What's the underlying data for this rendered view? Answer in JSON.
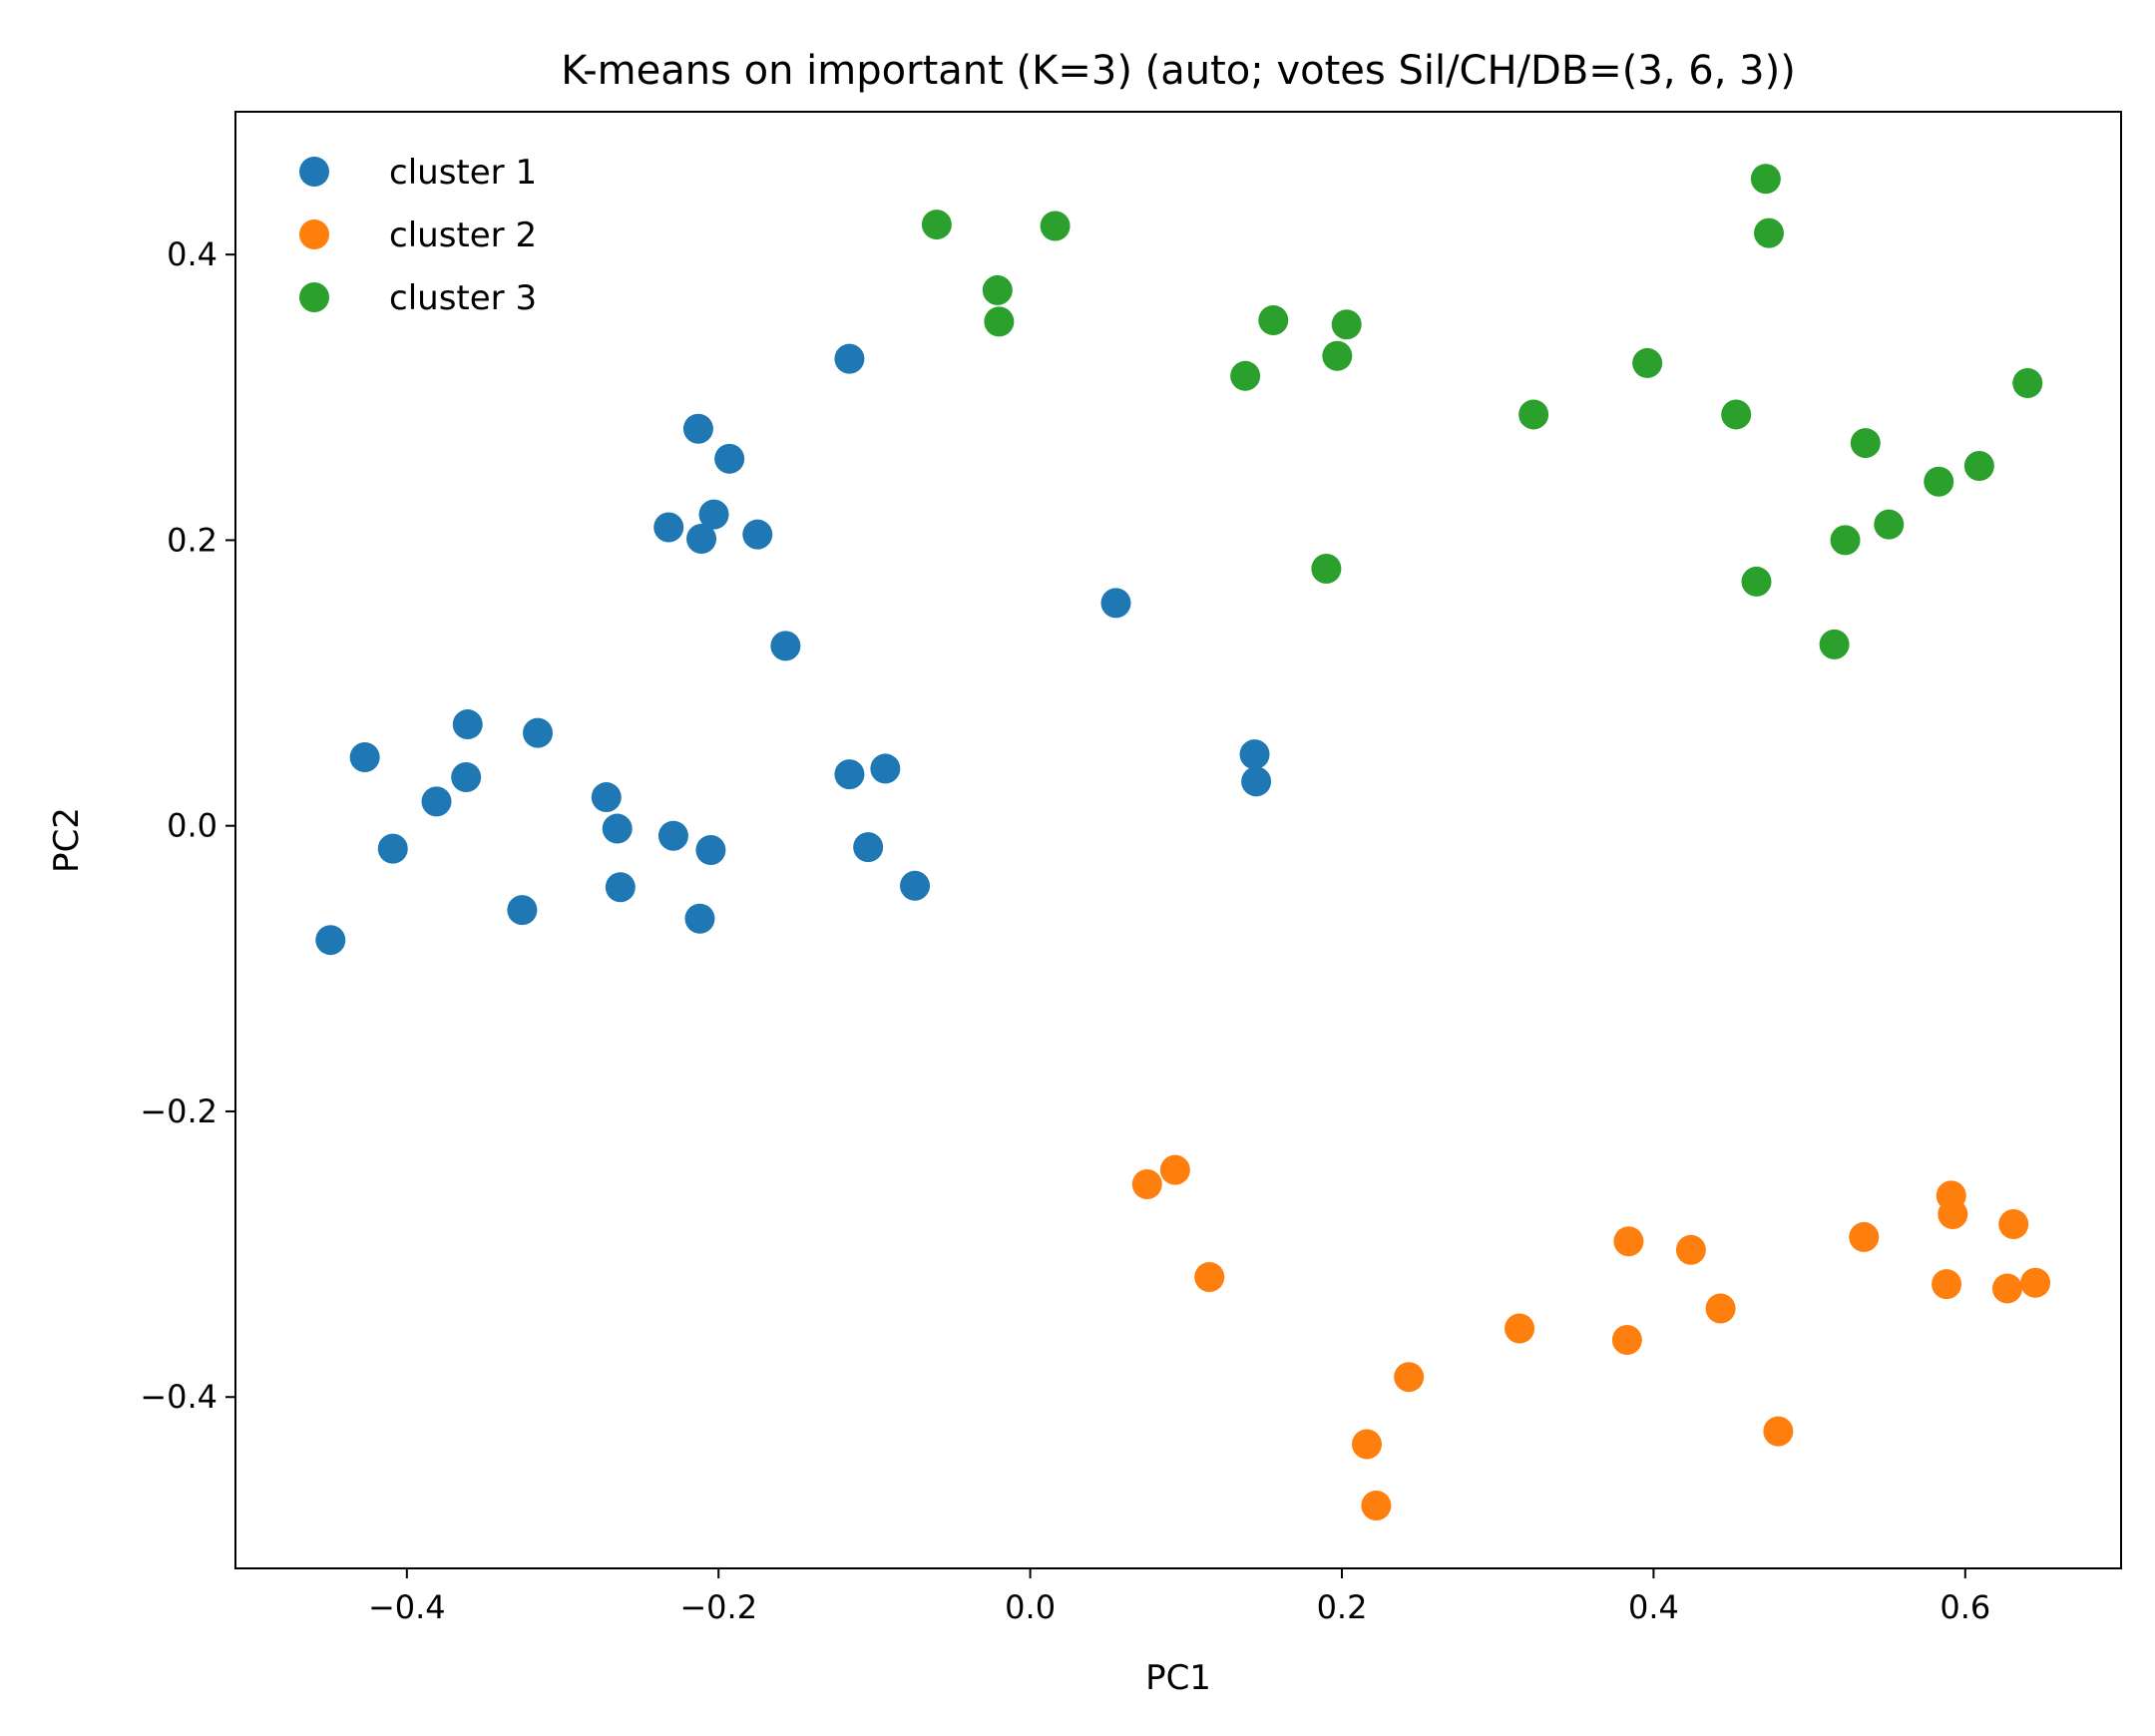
{
  "chart_data": {
    "type": "scatter",
    "title": "K-means on important (K=3) (auto; votes Sil/CH/DB=(3, 6, 3))",
    "xlabel": "PC1",
    "ylabel": "PC2",
    "xlim": [
      -0.51,
      0.7
    ],
    "ylim": [
      -0.52,
      0.5
    ],
    "xticks": [
      -0.4,
      -0.2,
      0.0,
      0.2,
      0.4,
      0.6
    ],
    "xtick_labels": [
      "−0.4",
      "−0.2",
      "0.0",
      "0.2",
      "0.4",
      "0.6"
    ],
    "yticks": [
      -0.4,
      -0.2,
      0.0,
      0.2,
      0.4
    ],
    "ytick_labels": [
      "−0.4",
      "−0.2",
      "0.0",
      "0.2",
      "0.4"
    ],
    "grid": false,
    "legend_position": "top-left",
    "series": [
      {
        "name": "cluster 1",
        "color": "#1f77b4",
        "points": [
          [
            -0.449,
            -0.08
          ],
          [
            -0.427,
            0.048
          ],
          [
            -0.409,
            -0.016
          ],
          [
            -0.381,
            0.017
          ],
          [
            -0.362,
            0.034
          ],
          [
            -0.361,
            0.071
          ],
          [
            -0.326,
            -0.059
          ],
          [
            -0.316,
            0.065
          ],
          [
            -0.272,
            0.02
          ],
          [
            -0.265,
            -0.002
          ],
          [
            -0.263,
            -0.043
          ],
          [
            -0.232,
            0.209
          ],
          [
            -0.229,
            -0.007
          ],
          [
            -0.213,
            0.278
          ],
          [
            -0.212,
            -0.065
          ],
          [
            -0.211,
            0.201
          ],
          [
            -0.205,
            -0.017
          ],
          [
            -0.203,
            0.218
          ],
          [
            -0.193,
            0.257
          ],
          [
            -0.175,
            0.204
          ],
          [
            -0.157,
            0.126
          ],
          [
            -0.116,
            0.327
          ],
          [
            -0.116,
            0.036
          ],
          [
            -0.104,
            -0.015
          ],
          [
            -0.093,
            0.04
          ],
          [
            -0.074,
            -0.042
          ],
          [
            0.055,
            0.156
          ],
          [
            0.144,
            0.05
          ],
          [
            0.145,
            0.031
          ]
        ]
      },
      {
        "name": "cluster 2",
        "color": "#ff7f0e",
        "points": [
          [
            0.075,
            -0.251
          ],
          [
            0.093,
            -0.241
          ],
          [
            0.115,
            -0.316
          ],
          [
            0.216,
            -0.433
          ],
          [
            0.222,
            -0.476
          ],
          [
            0.243,
            -0.386
          ],
          [
            0.314,
            -0.352
          ],
          [
            0.384,
            -0.291
          ],
          [
            0.383,
            -0.36
          ],
          [
            0.424,
            -0.297
          ],
          [
            0.443,
            -0.338
          ],
          [
            0.48,
            -0.424
          ],
          [
            0.535,
            -0.288
          ],
          [
            0.591,
            -0.259
          ],
          [
            0.592,
            -0.272
          ],
          [
            0.588,
            -0.321
          ],
          [
            0.631,
            -0.279
          ],
          [
            0.627,
            -0.324
          ],
          [
            0.645,
            -0.32
          ]
        ]
      },
      {
        "name": "cluster 3",
        "color": "#2ca02c",
        "points": [
          [
            -0.06,
            0.421
          ],
          [
            -0.021,
            0.375
          ],
          [
            -0.02,
            0.353
          ],
          [
            0.016,
            0.42
          ],
          [
            0.138,
            0.315
          ],
          [
            0.156,
            0.354
          ],
          [
            0.19,
            0.18
          ],
          [
            0.197,
            0.329
          ],
          [
            0.203,
            0.351
          ],
          [
            0.323,
            0.288
          ],
          [
            0.396,
            0.324
          ],
          [
            0.453,
            0.288
          ],
          [
            0.466,
            0.171
          ],
          [
            0.472,
            0.453
          ],
          [
            0.474,
            0.415
          ],
          [
            0.516,
            0.127
          ],
          [
            0.523,
            0.2
          ],
          [
            0.536,
            0.268
          ],
          [
            0.551,
            0.211
          ],
          [
            0.583,
            0.241
          ],
          [
            0.609,
            0.252
          ],
          [
            0.64,
            0.31
          ]
        ]
      }
    ]
  }
}
